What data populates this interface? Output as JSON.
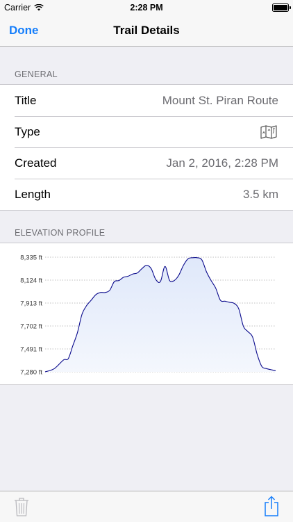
{
  "status_bar": {
    "carrier": "Carrier",
    "time": "2:28 PM"
  },
  "nav": {
    "done_label": "Done",
    "title": "Trail Details"
  },
  "general": {
    "header": "GENERAL",
    "rows": [
      {
        "label": "Title",
        "value": "Mount St. Piran Route"
      },
      {
        "label": "Type",
        "icon": "map-icon"
      },
      {
        "label": "Created",
        "value": "Jan 2, 2016, 2:28 PM"
      },
      {
        "label": "Length",
        "value": "3.5 km"
      }
    ]
  },
  "elevation": {
    "header": "ELEVATION PROFILE",
    "chart_data": {
      "type": "area",
      "ylim": [
        7280,
        8335
      ],
      "y_ticks": [
        "8,335 ft",
        "8,124 ft",
        "7,913 ft",
        "7,702 ft",
        "7,491 ft",
        "7,280 ft"
      ],
      "y_tick_values": [
        8335,
        8124,
        7913,
        7702,
        7491,
        7280
      ],
      "x": [
        0,
        0.04,
        0.08,
        0.1,
        0.12,
        0.14,
        0.16,
        0.18,
        0.2,
        0.22,
        0.24,
        0.26,
        0.28,
        0.3,
        0.32,
        0.34,
        0.36,
        0.38,
        0.4,
        0.42,
        0.44,
        0.46,
        0.48,
        0.5,
        0.52,
        0.54,
        0.56,
        0.58,
        0.6,
        0.62,
        0.64,
        0.66,
        0.68,
        0.7,
        0.72,
        0.74,
        0.76,
        0.78,
        0.8,
        0.82,
        0.84,
        0.86,
        0.88,
        0.9,
        0.92,
        0.94,
        0.96,
        0.98,
        1.0
      ],
      "values": [
        7280,
        7310,
        7390,
        7400,
        7520,
        7640,
        7810,
        7890,
        7940,
        7990,
        8010,
        8010,
        8030,
        8110,
        8120,
        8150,
        8160,
        8180,
        8190,
        8230,
        8260,
        8230,
        8130,
        8110,
        8250,
        8120,
        8120,
        8170,
        8260,
        8320,
        8330,
        8330,
        8310,
        8200,
        8120,
        8050,
        7940,
        7930,
        7920,
        7910,
        7860,
        7700,
        7650,
        7600,
        7440,
        7330,
        7310,
        7300,
        7290
      ],
      "line_color": "#0a0a8c",
      "fill_color": "#dfe8fa",
      "grid": true
    }
  },
  "toolbar": {
    "trash_icon": "trash-icon",
    "share_icon": "share-icon"
  },
  "colors": {
    "accent": "#157efb",
    "secondary_text": "#6d6d72",
    "background": "#efeff4"
  }
}
